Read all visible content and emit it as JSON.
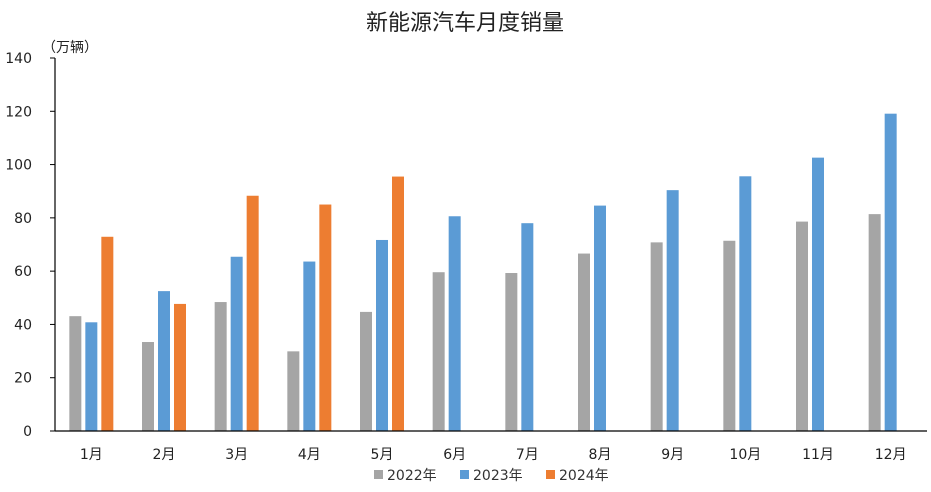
{
  "chart_data": {
    "type": "bar",
    "title": "新能源汽车月度销量",
    "unit_label": "（万辆）",
    "categories": [
      "1月",
      "2月",
      "3月",
      "4月",
      "5月",
      "6月",
      "7月",
      "8月",
      "9月",
      "10月",
      "11月",
      "12月"
    ],
    "series": [
      {
        "name": "2022年",
        "color": "#a5a5a5",
        "values": [
          43.1,
          33.4,
          48.4,
          29.9,
          44.7,
          59.6,
          59.3,
          66.6,
          70.8,
          71.4,
          78.6,
          81.4
        ]
      },
      {
        "name": "2023年",
        "color": "#5b9bd5",
        "values": [
          40.8,
          52.5,
          65.4,
          63.6,
          71.7,
          80.6,
          78.0,
          84.6,
          90.4,
          95.6,
          102.6,
          119.1
        ]
      },
      {
        "name": "2024年",
        "color": "#ed7d31",
        "values": [
          72.9,
          47.7,
          88.3,
          85.0,
          95.5,
          null,
          null,
          null,
          null,
          null,
          null,
          null
        ]
      }
    ],
    "ylim": [
      0,
      140
    ],
    "yticks": [
      0,
      20,
      40,
      60,
      80,
      100,
      120,
      140
    ],
    "grid": false,
    "legend_position": "bottom"
  }
}
